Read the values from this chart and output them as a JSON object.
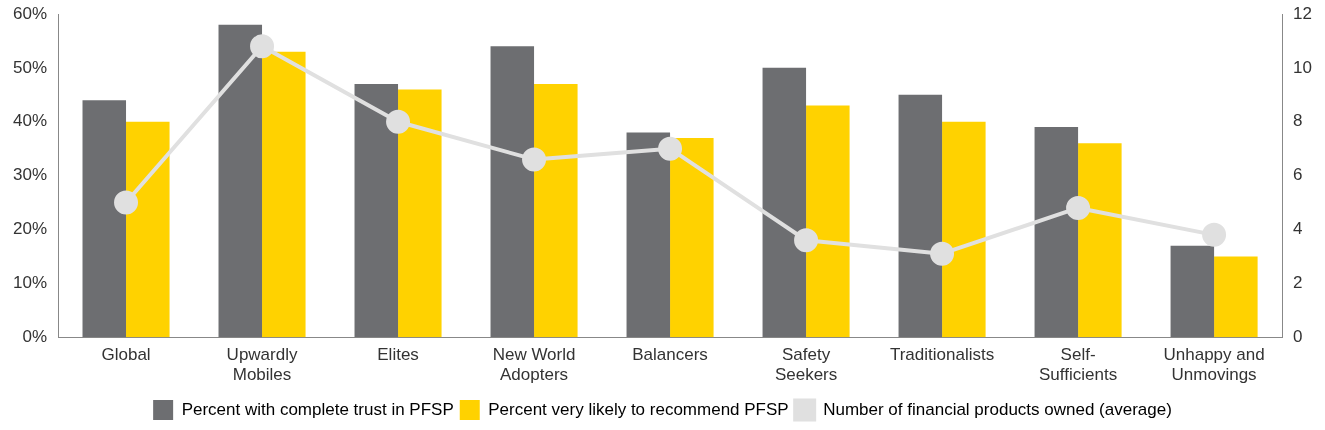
{
  "chart_data": {
    "type": "bar",
    "categories": [
      "Global",
      "Upwardly\nMobiles",
      "Elites",
      "New World\nAdopters",
      "Balancers",
      "Safety\nSeekers",
      "Traditionalists",
      "Self-\nSufficients",
      "Unhappy and\nUnmovings"
    ],
    "series": [
      {
        "name": "Percent with complete trust in PFSP",
        "color": "#6d6e71",
        "values": [
          44,
          58,
          47,
          54,
          38,
          50,
          45,
          39,
          17
        ]
      },
      {
        "name": "Percent very likely to recommend PFSP",
        "color": "#ffd200",
        "values": [
          40,
          53,
          46,
          47,
          37,
          43,
          40,
          36,
          15
        ]
      },
      {
        "name": "Number of financial products owned (average)",
        "type": "line",
        "axis": "y2",
        "color": "#e0e0e0",
        "values": [
          5.0,
          10.8,
          8.0,
          6.6,
          7.0,
          3.6,
          3.1,
          4.8,
          3.8
        ]
      }
    ],
    "ylim": [
      0,
      60
    ],
    "yticks": [
      {
        "value": 0,
        "label": "0%"
      },
      {
        "value": 10,
        "label": "10%"
      },
      {
        "value": 20,
        "label": "20%"
      },
      {
        "value": 30,
        "label": "30%"
      },
      {
        "value": 40,
        "label": "40%"
      },
      {
        "value": 50,
        "label": "50%"
      },
      {
        "value": 60,
        "label": "60%"
      }
    ],
    "y2lim": [
      0,
      12
    ],
    "y2ticks": [
      0,
      2,
      4,
      6,
      8,
      10,
      12
    ],
    "grid": false,
    "legend": "bottom",
    "marker": "circle",
    "line_style": "solid"
  }
}
